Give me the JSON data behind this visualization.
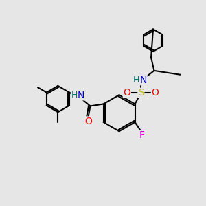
{
  "bg_color": "#e6e6e6",
  "bond_color": "#000000",
  "bond_width": 1.5,
  "atom_colors": {
    "N": "#0000cc",
    "O": "#ff0000",
    "S": "#bbbb00",
    "F": "#cc00cc",
    "H": "#007070",
    "C": "#000000"
  },
  "font_size": 9,
  "fig_size": [
    3.0,
    3.0
  ],
  "dpi": 100
}
